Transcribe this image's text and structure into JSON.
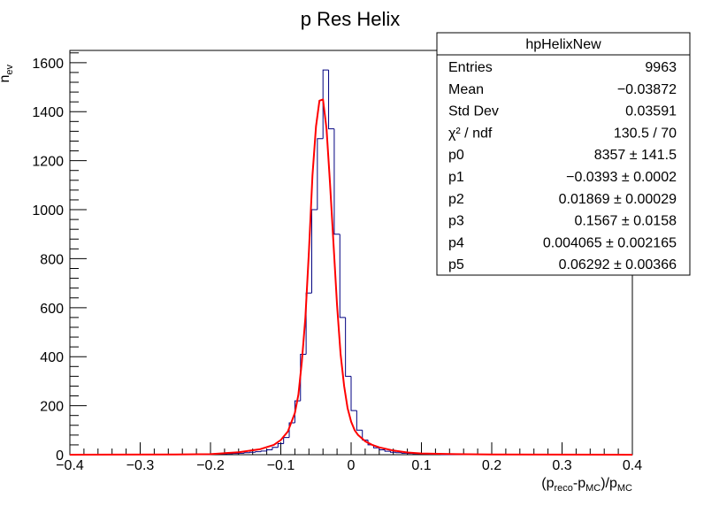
{
  "chart_data": {
    "type": "histogram",
    "title": "p Res Helix",
    "xlabel": "(p_reco-p_MC)/p_MC",
    "ylabel": "n_ev",
    "xlim": [
      -0.4,
      0.4
    ],
    "ylim": [
      0,
      1650
    ],
    "x_ticks": [
      -0.4,
      -0.3,
      -0.2,
      -0.1,
      0,
      0.1,
      0.2,
      0.3,
      0.4
    ],
    "x_tick_labels": [
      "−0.4",
      "−0.3",
      "−0.2",
      "−0.1",
      "0",
      "0.1",
      "0.2",
      "0.3",
      "0.4"
    ],
    "y_ticks": [
      0,
      200,
      400,
      600,
      800,
      1000,
      1200,
      1400,
      1600
    ],
    "y_tick_labels": [
      "0",
      "200",
      "400",
      "600",
      "800",
      "1000",
      "1200",
      "1400",
      "1600"
    ],
    "bin_width": 0.008,
    "bin_low_edges": [
      -0.2,
      -0.192,
      -0.184,
      -0.176,
      -0.168,
      -0.16,
      -0.152,
      -0.144,
      -0.136,
      -0.128,
      -0.12,
      -0.112,
      -0.104,
      -0.096,
      -0.088,
      -0.08,
      -0.072,
      -0.064,
      -0.056,
      -0.048,
      -0.04,
      -0.032,
      -0.024,
      -0.016,
      -0.008,
      0.0,
      0.008,
      0.016,
      0.024,
      0.032,
      0.04,
      0.048,
      0.056,
      0.064,
      0.072,
      0.08,
      0.088,
      0.096,
      0.104,
      0.112,
      0.12
    ],
    "bin_counts": [
      2,
      3,
      3,
      4,
      5,
      6,
      8,
      10,
      12,
      15,
      20,
      30,
      45,
      70,
      130,
      220,
      410,
      660,
      1000,
      1290,
      1570,
      1330,
      900,
      560,
      320,
      180,
      100,
      60,
      40,
      28,
      20,
      14,
      10,
      8,
      6,
      5,
      4,
      3,
      3,
      2,
      2
    ],
    "fit_curve": {
      "color": "#ff0000",
      "x": [
        -0.4,
        -0.25,
        -0.2,
        -0.16,
        -0.13,
        -0.11,
        -0.1,
        -0.09,
        -0.08,
        -0.075,
        -0.07,
        -0.065,
        -0.06,
        -0.055,
        -0.05,
        -0.045,
        -0.04,
        -0.035,
        -0.03,
        -0.025,
        -0.02,
        -0.015,
        -0.01,
        -0.005,
        0.0,
        0.005,
        0.01,
        0.02,
        0.03,
        0.04,
        0.06,
        0.08,
        0.1,
        0.15,
        0.2,
        0.4
      ],
      "y": [
        0,
        1,
        2,
        10,
        22,
        40,
        60,
        95,
        170,
        245,
        380,
        560,
        830,
        1140,
        1340,
        1445,
        1450,
        1330,
        1110,
        860,
        610,
        410,
        280,
        190,
        135,
        100,
        80,
        55,
        40,
        30,
        17,
        9,
        5,
        2,
        1,
        0
      ]
    },
    "histogram_color": "#000080",
    "stats_box": {
      "name": "hpHelixNew",
      "rows": [
        {
          "label": "Entries",
          "value": "9963"
        },
        {
          "label": "Mean",
          "value": "−0.03872"
        },
        {
          "label": "Std Dev",
          "value": "0.03591"
        },
        {
          "label": "χ² / ndf",
          "value": "130.5 / 70"
        },
        {
          "label": "p0",
          "value": "8357 ± 141.5"
        },
        {
          "label": "p1",
          "value": "−0.0393 ± 0.0002"
        },
        {
          "label": "p2",
          "value": "0.01869 ± 0.00029"
        },
        {
          "label": "p3",
          "value": "0.1567 ± 0.0158"
        },
        {
          "label": "p4",
          "value": "0.004065 ± 0.002165"
        },
        {
          "label": "p5",
          "value": "0.06292 ± 0.00366"
        }
      ]
    }
  }
}
